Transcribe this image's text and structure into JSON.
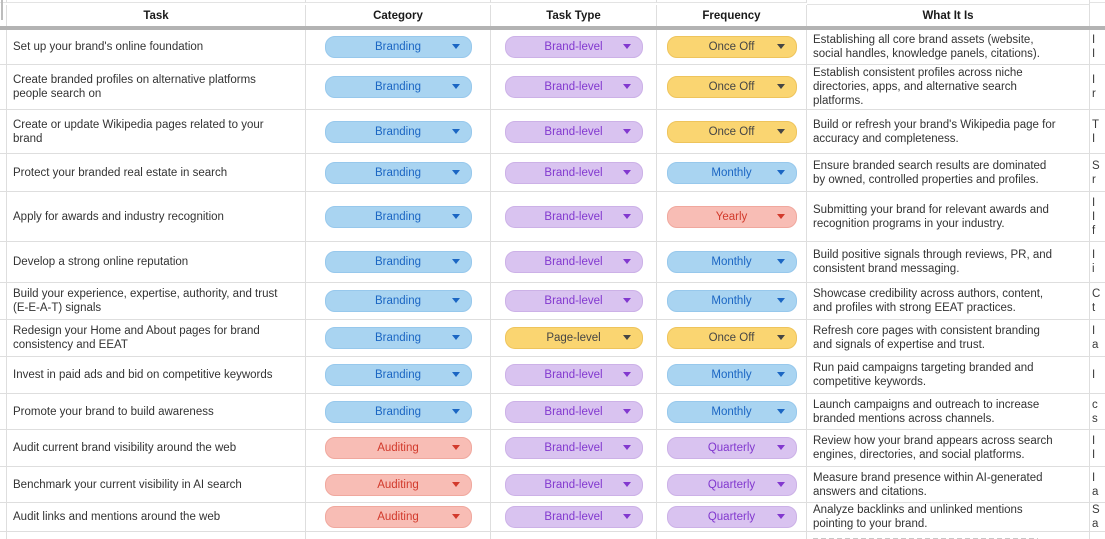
{
  "header": {
    "task": "Task",
    "category": "Category",
    "task_type": "Task Type",
    "frequency": "Frequency",
    "what_it_is": "What It Is"
  },
  "chip_colors": {
    "blue_bg": "#a9d4f1",
    "blue_text": "#1b66c3",
    "purple_bg": "#d9c3f0",
    "purple_text": "#8238cf",
    "yellow_bg": "#fad571",
    "yellow_text": "#454545",
    "red_bg": "#f8bdb5",
    "red_text": "#d23a2c"
  },
  "rows": [
    {
      "task": "Set up your brand's online foundation",
      "category": {
        "label": "Branding",
        "color": "blue"
      },
      "task_type": {
        "label": "Brand-level",
        "color": "purple"
      },
      "frequency": {
        "label": "Once Off",
        "color": "yellow"
      },
      "what_it_is": "Establishing all core brand assets (website,\nsocial handles, knowledge panels, citations).",
      "edge": "I\nI"
    },
    {
      "task": "Create branded profiles on alternative platforms\npeople search on",
      "category": {
        "label": "Branding",
        "color": "blue"
      },
      "task_type": {
        "label": "Brand-level",
        "color": "purple"
      },
      "frequency": {
        "label": "Once Off",
        "color": "yellow"
      },
      "what_it_is": "Establish consistent profiles across niche\ndirectories, apps, and alternative search\nplatforms.",
      "edge": "I\nr"
    },
    {
      "task": "Create or update Wikipedia pages related to your\nbrand",
      "category": {
        "label": "Branding",
        "color": "blue"
      },
      "task_type": {
        "label": "Brand-level",
        "color": "purple"
      },
      "frequency": {
        "label": "Once Off",
        "color": "yellow"
      },
      "what_it_is": "Build or refresh your brand's Wikipedia page for\naccuracy and completeness.",
      "edge": "T\nI"
    },
    {
      "task": "Protect your branded real estate in search",
      "category": {
        "label": "Branding",
        "color": "blue"
      },
      "task_type": {
        "label": "Brand-level",
        "color": "purple"
      },
      "frequency": {
        "label": "Monthly",
        "color": "blue"
      },
      "what_it_is": "Ensure branded search results are dominated\nby owned, controlled properties and profiles.",
      "edge": "S\nr"
    },
    {
      "task": "Apply for awards and industry recognition",
      "category": {
        "label": "Branding",
        "color": "blue"
      },
      "task_type": {
        "label": "Brand-level",
        "color": "purple"
      },
      "frequency": {
        "label": "Yearly",
        "color": "red"
      },
      "what_it_is": "Submitting your brand for relevant awards and\nrecognition programs in your industry.",
      "edge": "I\nI\nf"
    },
    {
      "task": "Develop a strong online reputation",
      "category": {
        "label": "Branding",
        "color": "blue"
      },
      "task_type": {
        "label": "Brand-level",
        "color": "purple"
      },
      "frequency": {
        "label": "Monthly",
        "color": "blue"
      },
      "what_it_is": "Build positive signals through reviews, PR, and\nconsistent brand messaging.",
      "edge": "I\ni"
    },
    {
      "task": "Build your experience, expertise, authority, and trust\n(E-E-A-T) signals",
      "category": {
        "label": "Branding",
        "color": "blue"
      },
      "task_type": {
        "label": "Brand-level",
        "color": "purple"
      },
      "frequency": {
        "label": "Monthly",
        "color": "blue"
      },
      "what_it_is": "Showcase credibility across authors, content,\nand profiles with strong EEAT practices.",
      "edge": "C\nt"
    },
    {
      "task": "Redesign your Home and About pages for brand\nconsistency and EEAT",
      "category": {
        "label": "Branding",
        "color": "blue"
      },
      "task_type": {
        "label": "Page-level",
        "color": "yellow"
      },
      "frequency": {
        "label": "Once Off",
        "color": "yellow"
      },
      "what_it_is": "Refresh core pages with consistent branding\nand signals of expertise and trust.",
      "edge": "I\na"
    },
    {
      "task": "Invest in paid ads and bid on competitive keywords",
      "category": {
        "label": "Branding",
        "color": "blue"
      },
      "task_type": {
        "label": "Brand-level",
        "color": "purple"
      },
      "frequency": {
        "label": "Monthly",
        "color": "blue"
      },
      "what_it_is": "Run paid campaigns targeting branded and\ncompetitive keywords.",
      "edge": "I"
    },
    {
      "task": "Promote your brand to build awareness",
      "category": {
        "label": "Branding",
        "color": "blue"
      },
      "task_type": {
        "label": "Brand-level",
        "color": "purple"
      },
      "frequency": {
        "label": "Monthly",
        "color": "blue"
      },
      "what_it_is": "Launch campaigns and outreach to increase\nbranded mentions across channels.",
      "edge": "c\ns"
    },
    {
      "task": "Audit current brand visibility around the web",
      "category": {
        "label": "Auditing",
        "color": "red"
      },
      "task_type": {
        "label": "Brand-level",
        "color": "purple"
      },
      "frequency": {
        "label": "Quarterly",
        "color": "purple"
      },
      "what_it_is": "Review how your brand appears across search\nengines, directories, and social platforms.",
      "edge": "I\nI"
    },
    {
      "task": "Benchmark your current visibility in AI search",
      "category": {
        "label": "Auditing",
        "color": "red"
      },
      "task_type": {
        "label": "Brand-level",
        "color": "purple"
      },
      "frequency": {
        "label": "Quarterly",
        "color": "purple"
      },
      "what_it_is": "Measure brand presence within AI-generated\nanswers and citations.",
      "edge": "I\na"
    },
    {
      "task": "Audit links and mentions around the web",
      "category": {
        "label": "Auditing",
        "color": "red"
      },
      "task_type": {
        "label": "Brand-level",
        "color": "purple"
      },
      "frequency": {
        "label": "Quarterly",
        "color": "purple"
      },
      "what_it_is": "Analyze backlinks and unlinked mentions\npointing to your brand.",
      "edge": "S\na"
    }
  ]
}
